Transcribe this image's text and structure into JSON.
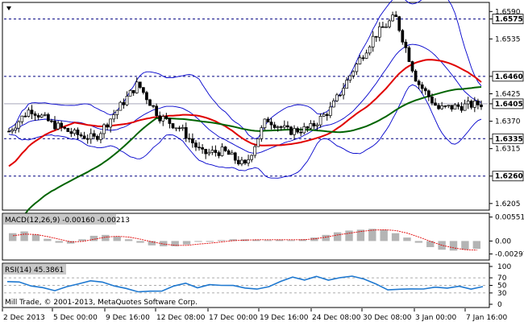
{
  "chart_data": {
    "type": "candlestick",
    "main": {
      "y_ticks": [
        "1.6590",
        "1.6575",
        "1.6535",
        "1.6460",
        "1.6425",
        "1.6405",
        "1.6370",
        "1.6335",
        "1.6315",
        "1.6260",
        "1.6205"
      ],
      "level_lines": [
        1.6575,
        1.646,
        1.6335,
        1.626
      ],
      "current_price": "1.6405",
      "ylim": [
        1.6195,
        1.6605
      ],
      "approx_close_path": [
        {
          "x": "2 Dec 2013",
          "y": 1.635
        },
        {
          "x": "3 Dec",
          "y": 1.6395
        },
        {
          "x": "4 Dec",
          "y": 1.6365
        },
        {
          "x": "5 Dec 00:00",
          "y": 1.6345
        },
        {
          "x": "6 Dec",
          "y": 1.6335
        },
        {
          "x": "9 Dec 16:00",
          "y": 1.639
        },
        {
          "x": "10 Dec",
          "y": 1.6445
        },
        {
          "x": "11 Dec",
          "y": 1.638
        },
        {
          "x": "12 Dec 08:00",
          "y": 1.6355
        },
        {
          "x": "13 Dec",
          "y": 1.6305
        },
        {
          "x": "16 Dec",
          "y": 1.631
        },
        {
          "x": "17 Dec 00:00",
          "y": 1.628
        },
        {
          "x": "18 Dec",
          "y": 1.6375
        },
        {
          "x": "19 Dec 16:00",
          "y": 1.635
        },
        {
          "x": "20 Dec",
          "y": 1.6355
        },
        {
          "x": "24 Dec 08:00",
          "y": 1.6395
        },
        {
          "x": "27 Dec",
          "y": 1.647
        },
        {
          "x": "30 Dec 08:00",
          "y": 1.654
        },
        {
          "x": "31 Dec",
          "y": 1.658
        },
        {
          "x": "2 Jan",
          "y": 1.645
        },
        {
          "x": "3 Jan 00:00",
          "y": 1.6395
        },
        {
          "x": "6 Jan",
          "y": 1.64
        },
        {
          "x": "7 Jan 16:00",
          "y": 1.6405
        }
      ]
    },
    "macd": {
      "label": "MACD(12,26,9) -0.00160 -0.00213",
      "y_ticks": [
        "0.00551",
        "0.00",
        "-0.00297"
      ],
      "ylim": [
        -0.004,
        0.006
      ],
      "histogram": [
        0.0018,
        0.0022,
        0.0015,
        0.0005,
        -0.0004,
        -0.0006,
        0.0004,
        0.0012,
        0.0014,
        0.001,
        0.0004,
        -0.0004,
        -0.001,
        -0.0012,
        -0.0012,
        -0.0008,
        -0.0002,
        -0.0002,
        0.0002,
        0.0004,
        0.0004,
        0.0003,
        0.0002,
        0.0003,
        0.0002,
        0.0004,
        0.0008,
        0.0014,
        0.002,
        0.0024,
        0.0026,
        0.0028,
        0.0026,
        0.0018,
        0.0008,
        -0.0004,
        -0.0014,
        -0.002,
        -0.0022,
        -0.002,
        -0.0018
      ],
      "signal": [
        0.0012,
        0.0016,
        0.0015,
        0.001,
        0.0004,
        -0.0002,
        -0.0001,
        0.0004,
        0.0009,
        0.0011,
        0.0009,
        0.0004,
        -0.0002,
        -0.0007,
        -0.001,
        -0.001,
        -0.0007,
        -0.0005,
        -0.0002,
        0.0001,
        0.0002,
        0.0003,
        0.0003,
        0.0003,
        0.0003,
        0.0003,
        0.0005,
        0.0009,
        0.0014,
        0.0018,
        0.0022,
        0.0025,
        0.0026,
        0.0024,
        0.0018,
        0.0009,
        -0.0001,
        -0.001,
        -0.0016,
        -0.002,
        -0.0021
      ]
    },
    "rsi": {
      "label": "RSI(14) 45.3861",
      "y_ticks": [
        "100",
        "70",
        "50",
        "30",
        "0"
      ],
      "ylim": [
        0,
        100
      ],
      "values": [
        60,
        58,
        50,
        42,
        38,
        45,
        55,
        62,
        58,
        50,
        40,
        35,
        33,
        36,
        48,
        55,
        45,
        50,
        52,
        48,
        44,
        40,
        46,
        62,
        70,
        66,
        72,
        65,
        70,
        74,
        68,
        52,
        40,
        38,
        42,
        40,
        45,
        44,
        46,
        42,
        45
      ]
    },
    "x_ticks": [
      "2 Dec 2013",
      "5 Dec 00:00",
      "9 Dec 16:00",
      "12 Dec 08:00",
      "17 Dec 00:00",
      "19 Dec 16:00",
      "24 Dec 08:00",
      "30 Dec 08:00",
      "3 Jan 00:00",
      "7 Jan 16:00"
    ],
    "colors": {
      "bollinger": "#0000cc",
      "ma_fast": "#e00000",
      "ma_slow": "#006400",
      "candle": "#000000",
      "macd_hist": "#b4b4b4",
      "macd_signal": "#e00000",
      "rsi": "#1e78d0",
      "level_line": "#000080"
    }
  },
  "footer": {
    "copyright": "Mill Trade, © 2001-2013, MetaQuotes Software Corp."
  },
  "title_icon": "down-triangle-icon"
}
